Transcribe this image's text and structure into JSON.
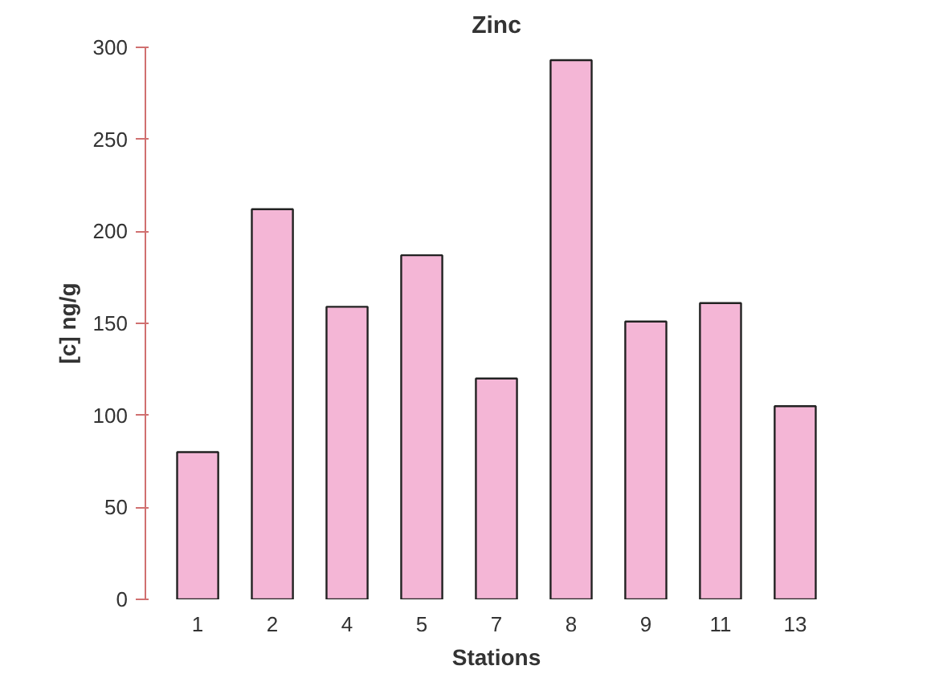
{
  "chart_data": {
    "type": "bar",
    "title": "Zinc",
    "xlabel": "Stations",
    "ylabel": "[c] ng/g",
    "categories": [
      "1",
      "2",
      "4",
      "5",
      "7",
      "8",
      "9",
      "11",
      "13"
    ],
    "values": [
      80,
      212,
      159,
      187,
      120,
      293,
      151,
      161,
      105
    ],
    "color": "#f4b6d6",
    "ylim": [
      0,
      300
    ],
    "yticks": [
      0,
      50,
      100,
      150,
      200,
      250,
      300
    ],
    "grid": false
  }
}
